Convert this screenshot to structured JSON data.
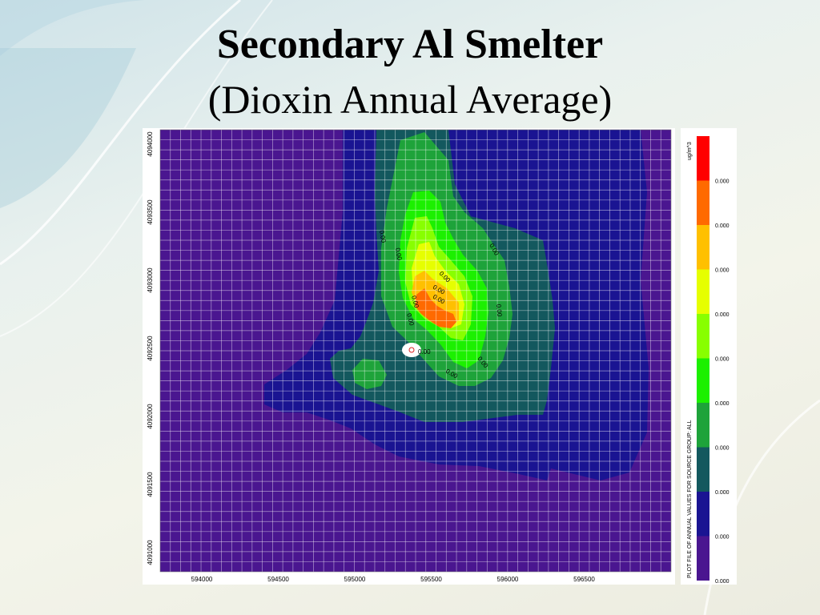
{
  "title": "Secondary Al Smelter",
  "subtitle": "(Dioxin Annual Average)",
  "map": {
    "x_ticks": [
      "594000",
      "594500",
      "595000",
      "595500",
      "596000",
      "596500"
    ],
    "y_ticks": [
      "4094000",
      "4093500",
      "4093000",
      "4092500",
      "4092000",
      "4091500",
      "4091000"
    ],
    "contour_labels": [
      "0.00",
      "0.00",
      "0.00",
      "0.00",
      "0.00",
      "0.00",
      "0.00",
      "0.00",
      "0.00",
      "0.00",
      "0.00",
      "0.00"
    ]
  },
  "legend": {
    "units": "ug/m^3",
    "caption": "PLOT FILE OF ANNUAL VALUES FOR SOURCE GROUP: ALL",
    "values": [
      "0.000",
      "0.000",
      "0.000",
      "0.000",
      "0.000",
      "0.000",
      "0.000",
      "0.000",
      "0.000",
      "0.000"
    ],
    "colors": [
      "#ff0000",
      "#ff6a00",
      "#ffc000",
      "#e6ff00",
      "#88ff00",
      "#1cf000",
      "#1ea33a",
      "#13585e",
      "#1a1492",
      "#4a1690"
    ]
  },
  "colors": {
    "level_1": "#4a1690",
    "level_2": "#1a1492",
    "level_3": "#13585e",
    "level_4": "#1ea33a",
    "level_5": "#1cf000",
    "level_6": "#88ff00",
    "level_7": "#e6ff00",
    "level_8": "#ffc000",
    "level_9": "#ff6a00",
    "level_10": "#ff0000"
  }
}
